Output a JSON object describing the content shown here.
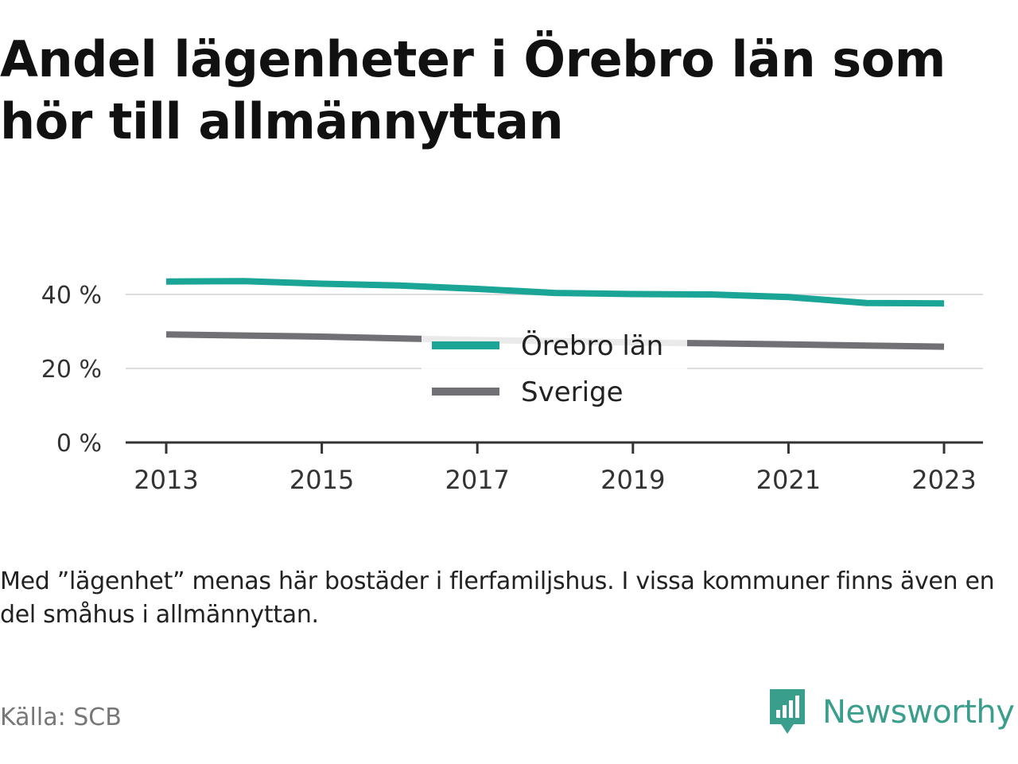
{
  "title": "Andel lägenheter i Örebro län som hör till allmännyttan",
  "note": "Med ”lägenhet” menas här bostäder i flerfamiljshus. I vissa kommuner finns även en del småhus i allmännyttan.",
  "source": "Källa: SCB",
  "brand": {
    "name": "Newsworthy",
    "icon": "newsworthy-logo-icon",
    "color": "#3a9e8d"
  },
  "chart_data": {
    "type": "line",
    "x": [
      2013,
      2014,
      2015,
      2016,
      2017,
      2018,
      2019,
      2020,
      2021,
      2022,
      2023
    ],
    "xticks": [
      "2013",
      "2015",
      "2017",
      "2019",
      "2021",
      "2023"
    ],
    "yticks": [
      "0 %",
      "20 %",
      "40 %"
    ],
    "ytick_values": [
      0,
      20,
      40
    ],
    "ylim": [
      0,
      44
    ],
    "grid": true,
    "legend_position": "center",
    "series": [
      {
        "name": "Örebro län",
        "color": "#1aa597",
        "values": [
          43.5,
          43.6,
          42.9,
          42.4,
          41.5,
          40.4,
          40.1,
          40.0,
          39.3,
          37.7,
          37.6
        ]
      },
      {
        "name": "Sverige",
        "color": "#707075",
        "values": [
          29.2,
          28.9,
          28.6,
          28.1,
          27.7,
          27.4,
          27.0,
          26.8,
          26.5,
          26.2,
          25.9
        ]
      }
    ]
  }
}
